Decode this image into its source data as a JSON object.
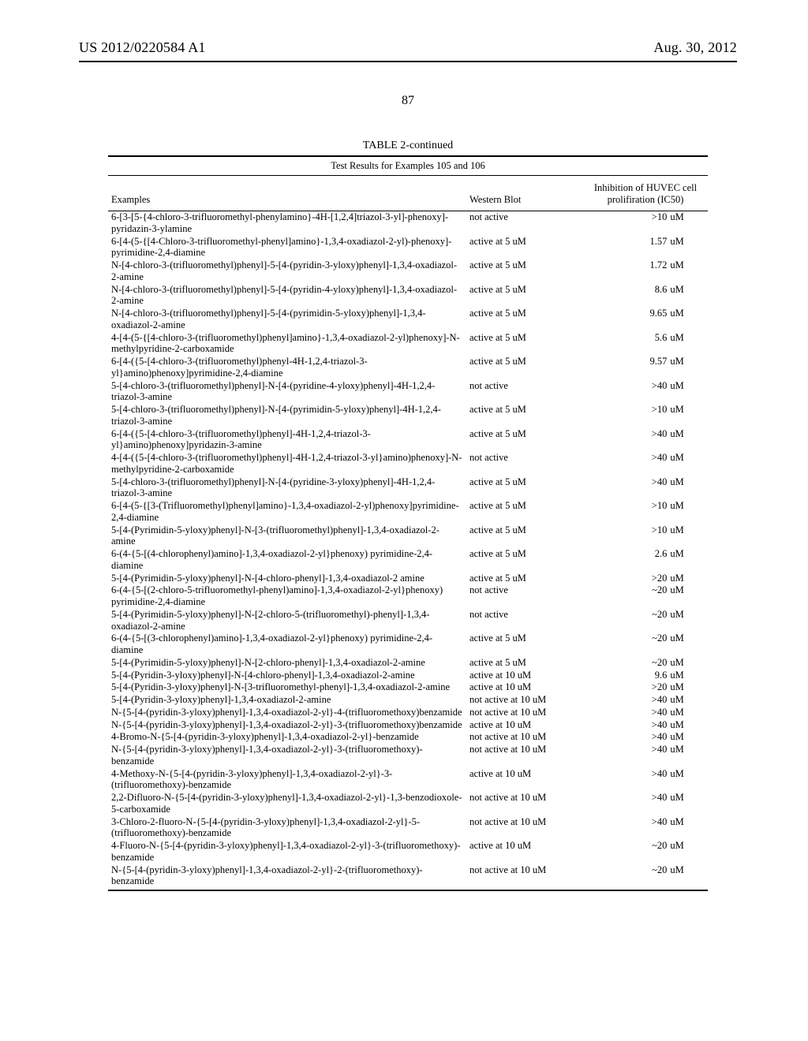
{
  "header": {
    "left": "US 2012/0220584 A1",
    "right": "Aug. 30, 2012"
  },
  "page_number": "87",
  "table": {
    "title": "TABLE 2-continued",
    "subtitle": "Test Results for Examples 105 and 106",
    "columns": {
      "examples": "Examples",
      "western": "Western Blot",
      "ic50": "Inhibition of HUVEC cell prolifiration (IC50)"
    },
    "rows": [
      {
        "ex": "6-[3-[5-{4-chloro-3-trifluoromethyl-phenylamino}-4H-[1,2,4]triazol-3-yl]-phenoxy]-pyridazin-3-ylamine",
        "wb": "not active",
        "ic_num": ">10",
        "ic_unit": "uM"
      },
      {
        "ex": "6-[4-(5-{[4-Chloro-3-trifluoromethyl-phenyl]amino}-1,3,4-oxadiazol-2-yl)-phenoxy]-pyrimidine-2,4-diamine",
        "wb": "active at 5 uM",
        "ic_num": "1.57",
        "ic_unit": "uM"
      },
      {
        "ex": "N-[4-chloro-3-(trifluoromethyl)phenyl]-5-[4-(pyridin-3-yloxy)phenyl]-1,3,4-oxadiazol-2-amine",
        "wb": "active at 5 uM",
        "ic_num": "1.72",
        "ic_unit": "uM"
      },
      {
        "ex": "N-[4-chloro-3-(trifluoromethyl)phenyl]-5-[4-(pyridin-4-yloxy)phenyl]-1,3,4-oxadiazol-2-amine",
        "wb": "active at 5 uM",
        "ic_num": "8.6",
        "ic_unit": "uM"
      },
      {
        "ex": "N-[4-chloro-3-(trifluoromethyl)phenyl]-5-[4-(pyrimidin-5-yloxy)phenyl]-1,3,4-oxadiazol-2-amine",
        "wb": "active at 5 uM",
        "ic_num": "9.65",
        "ic_unit": "uM"
      },
      {
        "ex": "4-[4-(5-{[4-chloro-3-(trifluoromethyl)phenyl]amino}-1,3,4-oxadiazol-2-yl)phenoxy]-N-methylpyridine-2-carboxamide",
        "wb": "active at 5 uM",
        "ic_num": "5.6",
        "ic_unit": "uM"
      },
      {
        "ex": "6-[4-({5-[4-chloro-3-(trifluoromethyl)phenyl-4H-1,2,4-triazol-3-yl}amino)phenoxy]pyrimidine-2,4-diamine",
        "wb": "active at 5 uM",
        "ic_num": "9.57",
        "ic_unit": "uM"
      },
      {
        "ex": "5-[4-chloro-3-(trifluoromethyl)phenyl]-N-[4-(pyridine-4-yloxy)phenyl]-4H-1,2,4-triazol-3-amine",
        "wb": "not active",
        "ic_num": ">40",
        "ic_unit": "uM"
      },
      {
        "ex": "5-[4-chloro-3-(trifluoromethyl)phenyl]-N-[4-(pyrimidin-5-yloxy)phenyl]-4H-1,2,4-triazol-3-amine",
        "wb": "active at 5 uM",
        "ic_num": ">10",
        "ic_unit": "uM"
      },
      {
        "ex": "6-[4-({5-[4-chloro-3-(trifluoromethyl)phenyl]-4H-1,2,4-triazol-3-yl}amino)phenoxy]pyridazin-3-amine",
        "wb": "active at 5 uM",
        "ic_num": ">40",
        "ic_unit": "uM"
      },
      {
        "ex": "4-[4-({5-[4-chloro-3-(trifluoromethyl)phenyl]-4H-1,2,4-triazol-3-yl}amino)phenoxy]-N-methylpyridine-2-carboxamide",
        "wb": "not active",
        "ic_num": ">40",
        "ic_unit": "uM"
      },
      {
        "ex": "5-[4-chloro-3-(trifluoromethyl)phenyl]-N-[4-(pyridine-3-yloxy)phenyl]-4H-1,2,4-triazol-3-amine",
        "wb": "active at 5 uM",
        "ic_num": ">40",
        "ic_unit": "uM"
      },
      {
        "ex": "6-[4-(5-{[3-(Trifluoromethyl)phenyl]amino}-1,3,4-oxadiazol-2-yl)phenoxy]pyrimidine-2,4-diamine",
        "wb": "active at 5 uM",
        "ic_num": ">10",
        "ic_unit": "uM"
      },
      {
        "ex": "5-[4-(Pyrimidin-5-yloxy)phenyl]-N-[3-(trifluoromethyl)phenyl]-1,3,4-oxadiazol-2-amine",
        "wb": "active at 5 uM",
        "ic_num": ">10",
        "ic_unit": "uM"
      },
      {
        "ex": "6-(4-{5-[(4-chlorophenyl)amino]-1,3,4-oxadiazol-2-yl}phenoxy) pyrimidine-2,4-diamine",
        "wb": "active at 5 uM",
        "ic_num": "2.6",
        "ic_unit": "uM"
      },
      {
        "ex": "5-[4-(Pyrimidin-5-yloxy)phenyl]-N-[4-chloro-phenyl]-1,3,4-oxadiazol-2 amine",
        "wb": "active at 5 uM",
        "ic_num": ">20",
        "ic_unit": "uM"
      },
      {
        "ex": "6-(4-{5-[(2-chloro-5-trifluoromethyl-phenyl)amino]-1,3,4-oxadiazol-2-yl}phenoxy) pyrimidine-2,4-diamine",
        "wb": "not active",
        "ic_num": "~20",
        "ic_unit": "uM"
      },
      {
        "ex": "5-[4-(Pyrimidin-5-yloxy)phenyl]-N-[2-chloro-5-(trifluoromethyl)-phenyl]-1,3,4-oxadiazol-2-amine",
        "wb": "not active",
        "ic_num": "~20",
        "ic_unit": "uM"
      },
      {
        "ex": "6-(4-{5-[(3-chlorophenyl)amino]-1,3,4-oxadiazol-2-yl}phenoxy) pyrimidine-2,4-diamine",
        "wb": "active at 5 uM",
        "ic_num": "~20",
        "ic_unit": "uM"
      },
      {
        "ex": "5-[4-(Pyrimidin-5-yloxy)phenyl]-N-[2-chloro-phenyl]-1,3,4-oxadiazol-2-amine",
        "wb": "active at 5 uM",
        "ic_num": "~20",
        "ic_unit": "uM"
      },
      {
        "ex": "5-[4-(Pyridin-3-yloxy)phenyl]-N-[4-chloro-phenyl]-1,3,4-oxadiazol-2-amine",
        "wb": "active at 10 uM",
        "ic_num": "9.6",
        "ic_unit": "uM"
      },
      {
        "ex": "5-[4-(Pyridin-3-yloxy)phenyl]-N-[3-trifluoromethyl-phenyl]-1,3,4-oxadiazol-2-amine",
        "wb": "active at 10 uM",
        "ic_num": ">20",
        "ic_unit": "uM"
      },
      {
        "ex": "5-[4-(Pyridin-3-yloxy)phenyl]-1,3,4-oxadiazol-2-amine",
        "wb": "not active at 10 uM",
        "ic_num": ">40",
        "ic_unit": "uM"
      },
      {
        "ex": "N-{5-[4-(pyridin-3-yloxy)phenyl]-1,3,4-oxadiazol-2-yl}-4-(trifluoromethoxy)benzamide",
        "wb": "not active at 10 uM",
        "ic_num": ">40",
        "ic_unit": "uM"
      },
      {
        "ex": "N-{5-[4-(pyridin-3-yloxy)phenyl]-1,3,4-oxadiazol-2-yl}-3-(trifluoromethoxy)benzamide",
        "wb": "active at 10 uM",
        "ic_num": ">40",
        "ic_unit": "uM"
      },
      {
        "ex": "4-Bromo-N-{5-[4-(pyridin-3-yloxy)phenyl]-1,3,4-oxadiazol-2-yl}-benzamide",
        "wb": "not active at 10 uM",
        "ic_num": ">40",
        "ic_unit": "uM"
      },
      {
        "ex": "N-{5-[4-(pyridin-3-yloxy)phenyl]-1,3,4-oxadiazol-2-yl}-3-(trifluoromethoxy)-benzamide",
        "wb": "not active at 10 uM",
        "ic_num": ">40",
        "ic_unit": "uM"
      },
      {
        "ex": "4-Methoxy-N-{5-[4-(pyridin-3-yloxy)phenyl]-1,3,4-oxadiazol-2-yl}-3-(trifluoromethoxy)-benzamide",
        "wb": "active at 10 uM",
        "ic_num": ">40",
        "ic_unit": "uM"
      },
      {
        "ex": "2,2-Difluoro-N-{5-[4-(pyridin-3-yloxy)phenyl]-1,3,4-oxadiazol-2-yl}-1,3-benzodioxole-5-carboxamide",
        "wb": "not active at 10 uM",
        "ic_num": ">40",
        "ic_unit": "uM"
      },
      {
        "ex": "3-Chloro-2-fluoro-N-{5-[4-(pyridin-3-yloxy)phenyl]-1,3,4-oxadiazol-2-yl}-5-(trifluoromethoxy)-benzamide",
        "wb": "not active at 10 uM",
        "ic_num": ">40",
        "ic_unit": "uM"
      },
      {
        "ex": "4-Fluoro-N-{5-[4-(pyridin-3-yloxy)phenyl]-1,3,4-oxadiazol-2-yl}-3-(trifluoromethoxy)-benzamide",
        "wb": "active at 10 uM",
        "ic_num": "~20",
        "ic_unit": "uM"
      },
      {
        "ex": "N-{5-[4-(pyridin-3-yloxy)phenyl]-1,3,4-oxadiazol-2-yl}-2-(trifluoromethoxy)-benzamide",
        "wb": "not active at 10 uM",
        "ic_num": "~20",
        "ic_unit": "uM"
      }
    ]
  }
}
